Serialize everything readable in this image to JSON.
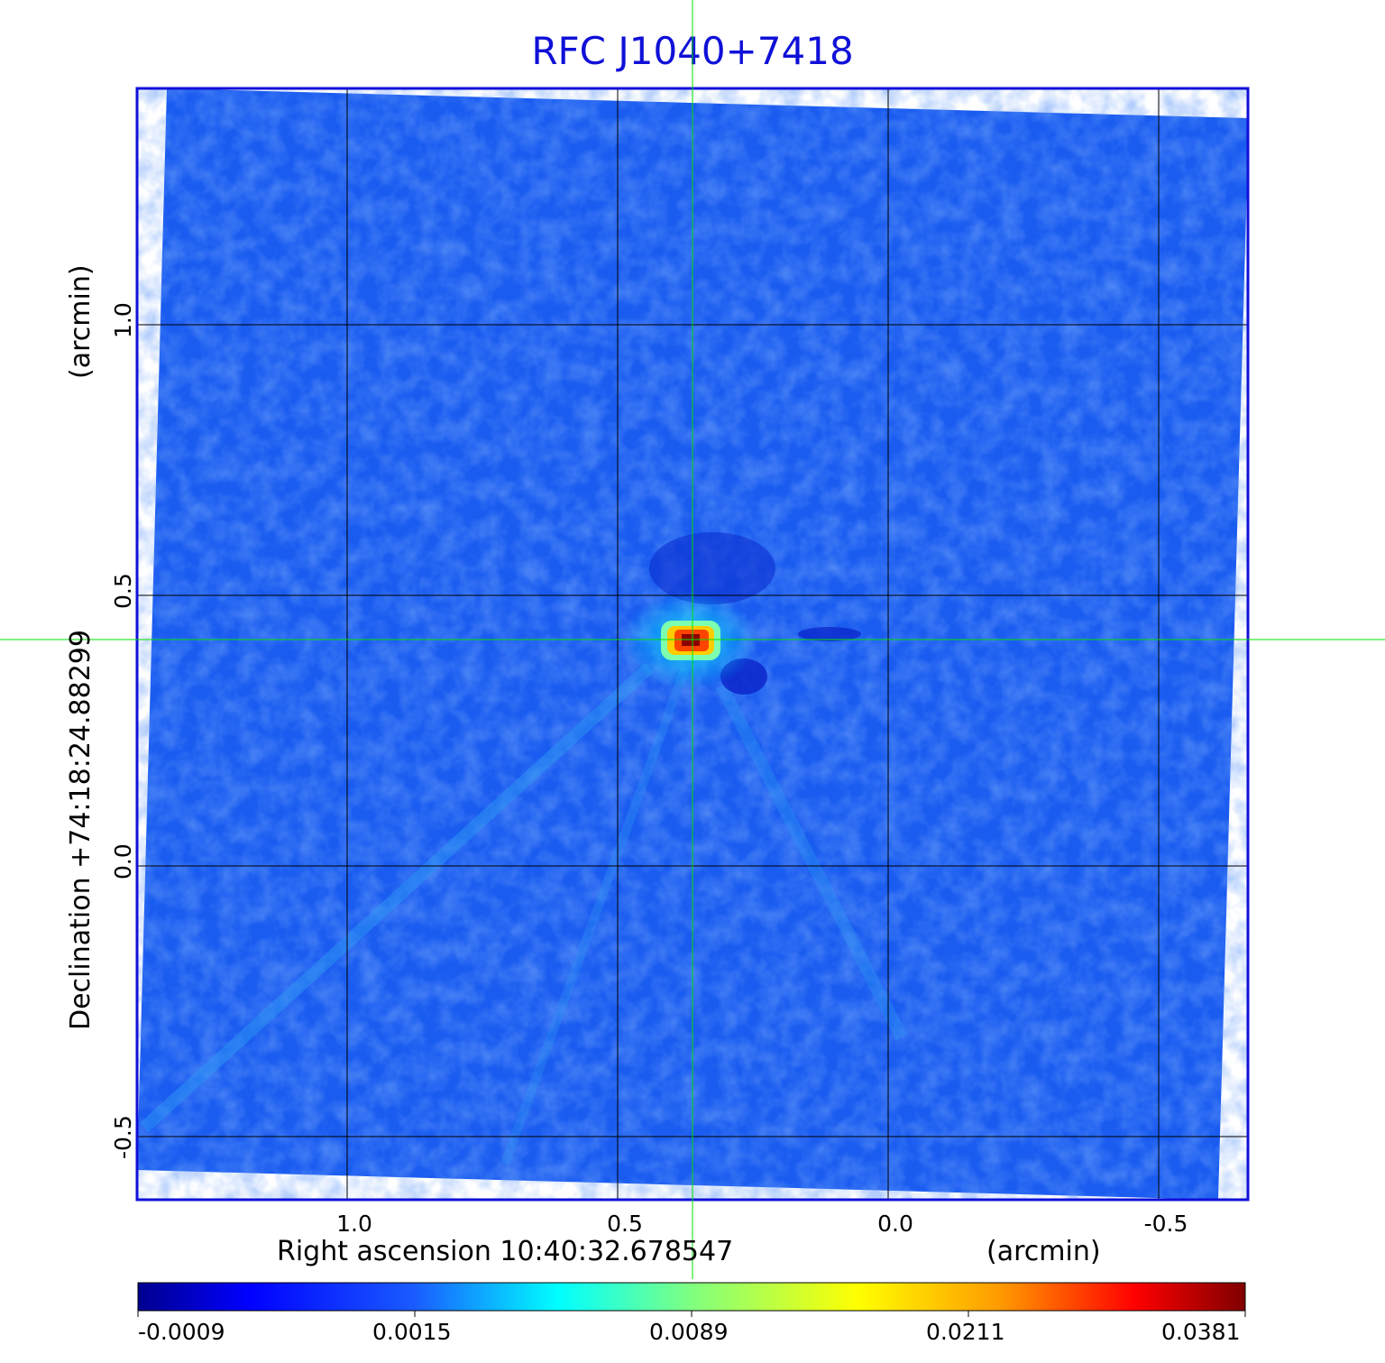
{
  "title": "RFC J1040+7418",
  "x_axis": {
    "label_left": "Right ascension  10:40:32.678547",
    "label_right": "(arcmin)",
    "ticks": [
      "1.0",
      "0.5",
      "0.0",
      "-0.5"
    ]
  },
  "y_axis": {
    "label_main": "Declination  +74:18:24.88299",
    "label_unit": "(arcmin)",
    "ticks": [
      "1.0",
      "0.5",
      "0.0",
      "-0.5"
    ]
  },
  "colorbar": {
    "ticks": [
      "-0.0009",
      "0.0015",
      "0.0089",
      "0.0211",
      "0.0381"
    ],
    "colors": [
      "#00008f",
      "#0000ff",
      "#00ffff",
      "#ffff00",
      "#ff0000",
      "#800000"
    ]
  },
  "colors": {
    "frame": "#1010d8",
    "background_field": "#1a5cf0",
    "crosshair": "#00e000",
    "grid": "#000000"
  }
}
